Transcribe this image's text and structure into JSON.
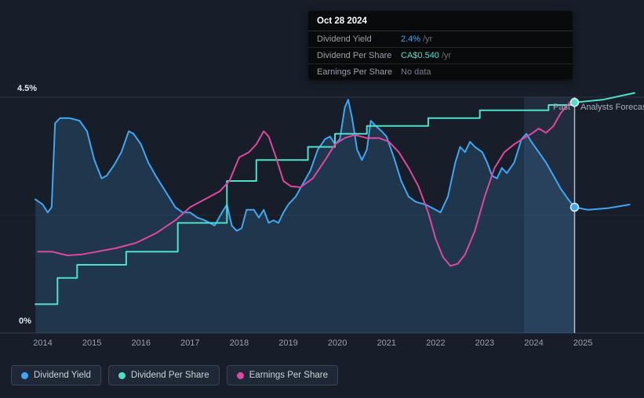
{
  "tooltip": {
    "title": "Oct 28 2024",
    "rows": [
      {
        "label": "Dividend Yield",
        "value": "2.4%",
        "suffix": "/yr",
        "color": "#3fa7f4"
      },
      {
        "label": "Dividend Per Share",
        "value": "CA$0.540",
        "suffix": "/yr",
        "color": "#4ee1c9"
      },
      {
        "label": "Earnings Per Share",
        "value": "No data",
        "suffix": "",
        "color": "#767e88"
      }
    ]
  },
  "axis": {
    "y_top_label": "4.5%",
    "y_bottom_label": "0%",
    "years": [
      "2014",
      "2015",
      "2016",
      "2017",
      "2018",
      "2019",
      "2020",
      "2021",
      "2022",
      "2023",
      "2024",
      "2025"
    ]
  },
  "annotations": {
    "past_label": "Past",
    "forecast_label": "Analysts Forecasts"
  },
  "legend": {
    "items": [
      {
        "label": "Dividend Yield",
        "color": "#3fa7f4"
      },
      {
        "label": "Dividend Per Share",
        "color": "#4ee1c9"
      },
      {
        "label": "Earnings Per Share",
        "color": "#e0479e"
      }
    ]
  },
  "colors": {
    "background": "#171e29",
    "divider": "#d6dee7",
    "highlight_band": "rgba(99,148,210,0.13)"
  },
  "chart_data": {
    "type": "line",
    "x_range": [
      2013.8,
      2026.1
    ],
    "y_range": [
      0,
      4.5
    ],
    "y_unit": "%",
    "x_axis": "year",
    "legend_position": "bottom-left",
    "gridlines": [
      {
        "y": 4.5,
        "color": "#2b3442"
      },
      {
        "y": 2.25,
        "color": "#212a36"
      },
      {
        "y": 0,
        "color": "#353e4c"
      }
    ],
    "divider_x": 2024.83,
    "highlight_band": [
      2023.8,
      2024.83
    ],
    "markers": [
      {
        "name": "Dividend Per Share",
        "x": 2024.83,
        "y": 4.4,
        "color": "#4ee1c9"
      },
      {
        "name": "Dividend Yield",
        "x": 2024.83,
        "y": 2.4,
        "color": "#3fa7f4"
      }
    ],
    "series": [
      {
        "name": "Dividend Yield",
        "color": "#3fa7f4",
        "area_until": 2024.83,
        "area_color": "rgba(62,139,205,0.22)",
        "points": [
          [
            2013.85,
            2.55
          ],
          [
            2014.0,
            2.45
          ],
          [
            2014.1,
            2.3
          ],
          [
            2014.18,
            2.4
          ],
          [
            2014.25,
            4.0
          ],
          [
            2014.35,
            4.1
          ],
          [
            2014.55,
            4.1
          ],
          [
            2014.75,
            4.05
          ],
          [
            2014.9,
            3.85
          ],
          [
            2015.05,
            3.3
          ],
          [
            2015.2,
            2.95
          ],
          [
            2015.3,
            3.0
          ],
          [
            2015.45,
            3.2
          ],
          [
            2015.6,
            3.45
          ],
          [
            2015.75,
            3.85
          ],
          [
            2015.85,
            3.8
          ],
          [
            2016.0,
            3.6
          ],
          [
            2016.15,
            3.25
          ],
          [
            2016.3,
            3.0
          ],
          [
            2016.5,
            2.7
          ],
          [
            2016.7,
            2.4
          ],
          [
            2016.85,
            2.3
          ],
          [
            2017.0,
            2.3
          ],
          [
            2017.15,
            2.2
          ],
          [
            2017.3,
            2.15
          ],
          [
            2017.5,
            2.05
          ],
          [
            2017.65,
            2.3
          ],
          [
            2017.75,
            2.45
          ],
          [
            2017.85,
            2.05
          ],
          [
            2017.95,
            1.95
          ],
          [
            2018.05,
            2.0
          ],
          [
            2018.15,
            2.35
          ],
          [
            2018.3,
            2.35
          ],
          [
            2018.4,
            2.2
          ],
          [
            2018.5,
            2.35
          ],
          [
            2018.6,
            2.1
          ],
          [
            2018.7,
            2.15
          ],
          [
            2018.8,
            2.1
          ],
          [
            2018.9,
            2.3
          ],
          [
            2019.0,
            2.45
          ],
          [
            2019.15,
            2.6
          ],
          [
            2019.3,
            2.85
          ],
          [
            2019.45,
            3.1
          ],
          [
            2019.6,
            3.5
          ],
          [
            2019.75,
            3.7
          ],
          [
            2019.85,
            3.75
          ],
          [
            2019.95,
            3.6
          ],
          [
            2020.05,
            3.7
          ],
          [
            2020.15,
            4.3
          ],
          [
            2020.22,
            4.45
          ],
          [
            2020.3,
            4.1
          ],
          [
            2020.4,
            3.5
          ],
          [
            2020.5,
            3.3
          ],
          [
            2020.6,
            3.5
          ],
          [
            2020.68,
            4.05
          ],
          [
            2020.78,
            3.95
          ],
          [
            2020.9,
            3.85
          ],
          [
            2021.0,
            3.75
          ],
          [
            2021.15,
            3.35
          ],
          [
            2021.3,
            2.9
          ],
          [
            2021.45,
            2.6
          ],
          [
            2021.6,
            2.5
          ],
          [
            2021.8,
            2.45
          ],
          [
            2022.0,
            2.35
          ],
          [
            2022.1,
            2.3
          ],
          [
            2022.25,
            2.6
          ],
          [
            2022.4,
            3.25
          ],
          [
            2022.5,
            3.55
          ],
          [
            2022.6,
            3.45
          ],
          [
            2022.7,
            3.65
          ],
          [
            2022.8,
            3.55
          ],
          [
            2022.95,
            3.45
          ],
          [
            2023.05,
            3.25
          ],
          [
            2023.15,
            3.0
          ],
          [
            2023.25,
            2.95
          ],
          [
            2023.35,
            3.15
          ],
          [
            2023.45,
            3.05
          ],
          [
            2023.6,
            3.25
          ],
          [
            2023.75,
            3.7
          ],
          [
            2023.85,
            3.8
          ],
          [
            2023.95,
            3.65
          ],
          [
            2024.1,
            3.45
          ],
          [
            2024.25,
            3.25
          ],
          [
            2024.4,
            3.0
          ],
          [
            2024.55,
            2.75
          ],
          [
            2024.7,
            2.55
          ],
          [
            2024.83,
            2.4
          ],
          [
            2025.1,
            2.35
          ],
          [
            2025.5,
            2.38
          ],
          [
            2025.95,
            2.45
          ]
        ]
      },
      {
        "name": "Dividend Per Share",
        "color": "#4ee1c9",
        "step": true,
        "points": [
          [
            2013.85,
            0.55
          ],
          [
            2014.3,
            1.05
          ],
          [
            2014.7,
            1.3
          ],
          [
            2015.7,
            1.55
          ],
          [
            2016.75,
            2.1
          ],
          [
            2017.75,
            2.9
          ],
          [
            2018.35,
            3.3
          ],
          [
            2019.4,
            3.55
          ],
          [
            2019.95,
            3.8
          ],
          [
            2020.6,
            3.95
          ],
          [
            2021.85,
            4.1
          ],
          [
            2022.9,
            4.25
          ],
          [
            2024.3,
            4.35
          ],
          [
            2024.83,
            4.4
          ]
        ]
      },
      {
        "name": "Dividend Per Share Forecast",
        "color": "#4ee1c9",
        "points": [
          [
            2024.83,
            4.4
          ],
          [
            2025.4,
            4.45
          ],
          [
            2026.05,
            4.58
          ]
        ]
      },
      {
        "name": "Earnings Per Share",
        "color": "#e0479e",
        "points": [
          [
            2013.9,
            1.55
          ],
          [
            2014.2,
            1.55
          ],
          [
            2014.5,
            1.48
          ],
          [
            2014.8,
            1.5
          ],
          [
            2015.1,
            1.55
          ],
          [
            2015.5,
            1.62
          ],
          [
            2015.9,
            1.72
          ],
          [
            2016.3,
            1.9
          ],
          [
            2016.7,
            2.15
          ],
          [
            2017.0,
            2.4
          ],
          [
            2017.3,
            2.55
          ],
          [
            2017.6,
            2.7
          ],
          [
            2017.8,
            2.9
          ],
          [
            2018.0,
            3.35
          ],
          [
            2018.2,
            3.45
          ],
          [
            2018.35,
            3.6
          ],
          [
            2018.5,
            3.85
          ],
          [
            2018.6,
            3.75
          ],
          [
            2018.75,
            3.35
          ],
          [
            2018.9,
            2.9
          ],
          [
            2019.05,
            2.8
          ],
          [
            2019.25,
            2.78
          ],
          [
            2019.5,
            2.95
          ],
          [
            2019.75,
            3.3
          ],
          [
            2019.95,
            3.6
          ],
          [
            2020.15,
            3.72
          ],
          [
            2020.35,
            3.78
          ],
          [
            2020.6,
            3.72
          ],
          [
            2020.85,
            3.72
          ],
          [
            2021.05,
            3.65
          ],
          [
            2021.25,
            3.45
          ],
          [
            2021.45,
            3.15
          ],
          [
            2021.65,
            2.8
          ],
          [
            2021.85,
            2.3
          ],
          [
            2022.0,
            1.8
          ],
          [
            2022.15,
            1.45
          ],
          [
            2022.3,
            1.28
          ],
          [
            2022.45,
            1.32
          ],
          [
            2022.6,
            1.5
          ],
          [
            2022.8,
            1.95
          ],
          [
            2023.0,
            2.6
          ],
          [
            2023.2,
            3.15
          ],
          [
            2023.4,
            3.45
          ],
          [
            2023.6,
            3.6
          ],
          [
            2023.8,
            3.72
          ],
          [
            2023.95,
            3.8
          ],
          [
            2024.1,
            3.9
          ],
          [
            2024.25,
            3.82
          ],
          [
            2024.4,
            3.95
          ],
          [
            2024.55,
            4.2
          ],
          [
            2024.8,
            4.47
          ]
        ]
      }
    ]
  }
}
